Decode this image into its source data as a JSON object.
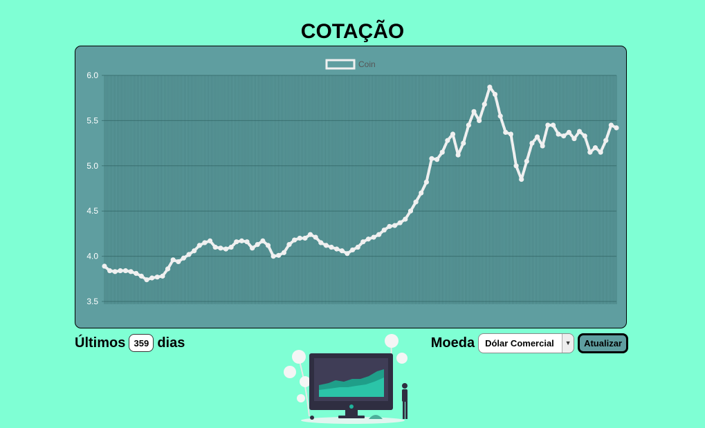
{
  "page": {
    "title": "COTAÇÃO"
  },
  "controls": {
    "days_prefix": "Últimos",
    "days_value": "359",
    "days_suffix": "dias",
    "currency_label": "Moeda",
    "currency_selected": "Dólar Comercial",
    "update_label": "Atualizar"
  },
  "colors": {
    "background": "#7fffd4",
    "chart_bg": "#5f9ea0",
    "line": "#f0f0f0"
  },
  "chart_data": {
    "type": "line",
    "title": "",
    "xlabel": "",
    "ylabel": "",
    "ylim": [
      3.5,
      6.0
    ],
    "yticks": [
      "6.0",
      "5.5",
      "5.0",
      "4.5",
      "4.0",
      "3.5"
    ],
    "grid": true,
    "legend": "top-center",
    "series": [
      {
        "name": "Coin",
        "values": [
          3.89,
          3.84,
          3.83,
          3.84,
          3.84,
          3.83,
          3.81,
          3.78,
          3.74,
          3.76,
          3.77,
          3.78,
          3.86,
          3.96,
          3.94,
          3.98,
          4.02,
          4.06,
          4.12,
          4.15,
          4.17,
          4.1,
          4.09,
          4.08,
          4.1,
          4.16,
          4.17,
          4.16,
          4.09,
          4.13,
          4.17,
          4.12,
          4.0,
          4.01,
          4.04,
          4.13,
          4.18,
          4.2,
          4.2,
          4.24,
          4.21,
          4.15,
          4.12,
          4.1,
          4.08,
          4.06,
          4.03,
          4.07,
          4.1,
          4.16,
          4.19,
          4.21,
          4.24,
          4.29,
          4.33,
          4.34,
          4.37,
          4.41,
          4.5,
          4.6,
          4.7,
          4.82,
          5.08,
          5.07,
          5.15,
          5.28,
          5.35,
          5.12,
          5.25,
          5.45,
          5.6,
          5.5,
          5.68,
          5.87,
          5.79,
          5.55,
          5.37,
          5.35,
          5.0,
          4.85,
          5.05,
          5.25,
          5.32,
          5.22,
          5.45,
          5.45,
          5.35,
          5.33,
          5.37,
          5.3,
          5.38,
          5.33,
          5.15,
          5.2,
          5.15,
          5.28,
          5.45,
          5.42
        ]
      }
    ]
  }
}
